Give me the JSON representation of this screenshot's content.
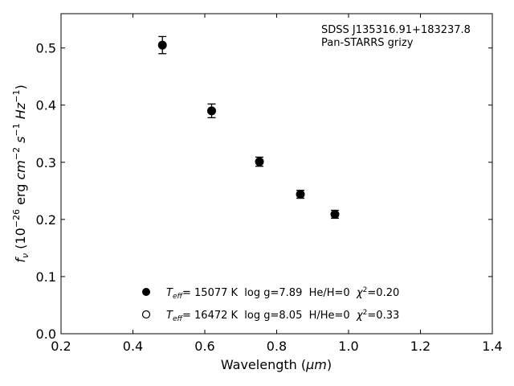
{
  "chart_data": {
    "type": "scatter",
    "xlabel_main": "Wavelength (",
    "xlabel_unit": "μm",
    "xlabel_close": ")",
    "ylabel": {
      "f": "f",
      "sub": "ν",
      "open": " (10",
      "e1": "−26",
      "erg": " erg ",
      "cm": "cm",
      "e2": "−2",
      "s": " s",
      "e3": "−1",
      "hz": " Hz",
      "e4": "−1",
      "close": ")"
    },
    "xlim": [
      0.2,
      1.4
    ],
    "ylim": [
      0.0,
      0.56
    ],
    "xticks": [
      0.2,
      0.4,
      0.6,
      0.8,
      1.0,
      1.2,
      1.4
    ],
    "xtick_labels": [
      "0.2",
      "0.4",
      "0.6",
      "0.8",
      "1.0",
      "1.2",
      "1.4"
    ],
    "yticks": [
      0.0,
      0.1,
      0.2,
      0.3,
      0.4,
      0.5
    ],
    "ytick_labels": [
      "0.0",
      "0.1",
      "0.2",
      "0.3",
      "0.4",
      "0.5"
    ],
    "annotation": [
      "SDSS J135316.91+183237.8",
      "Pan-STARRS grizy"
    ],
    "series": [
      {
        "marker": "filled",
        "x": [
          0.482,
          0.619,
          0.752,
          0.866,
          0.962
        ],
        "y": [
          0.505,
          0.39,
          0.301,
          0.244,
          0.209
        ],
        "err": [
          0.015,
          0.012,
          0.008,
          0.007,
          0.007
        ]
      }
    ],
    "legend": [
      {
        "marker": "filled",
        "teff_label": "T",
        "teff_sub": "eff",
        "text": "= 15077 K  log g=7.89  He/H=0  ",
        "chi": "χ",
        "chi_sup": "2",
        "chi_val": "=0.20"
      },
      {
        "marker": "open",
        "teff_label": "T",
        "teff_sub": "eff",
        "text": "= 16472 K  log g=8.05  H/He=0  ",
        "chi": "χ",
        "chi_sup": "2",
        "chi_val": "=0.33"
      }
    ]
  }
}
